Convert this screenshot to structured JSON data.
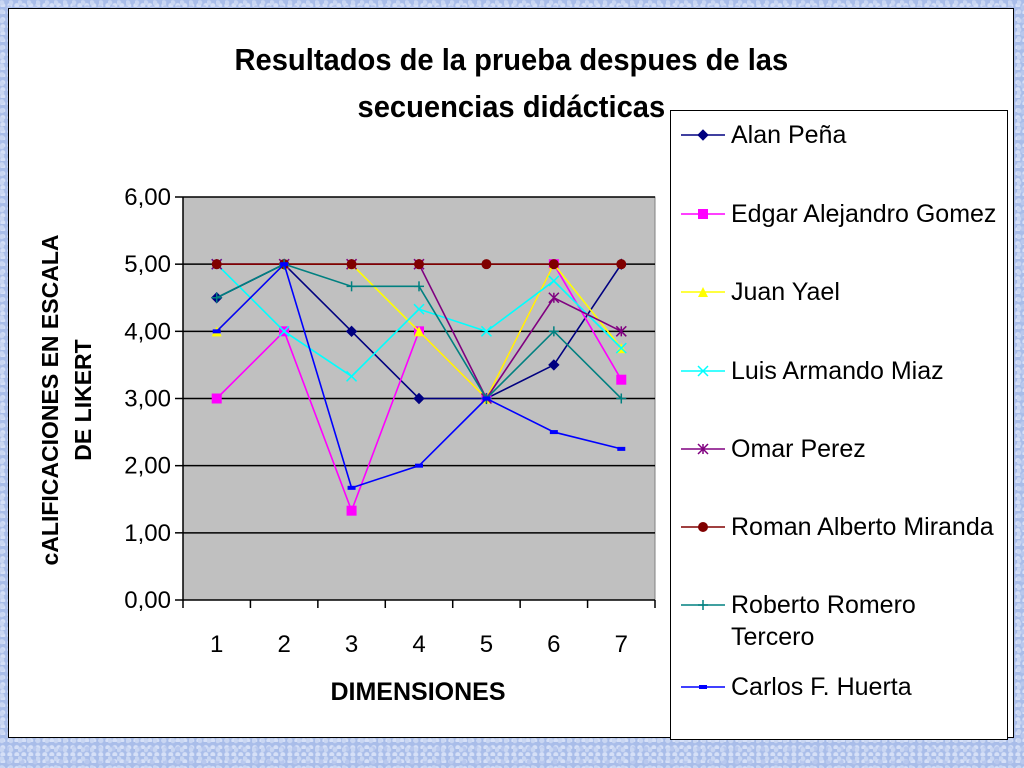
{
  "chart_data": {
    "type": "line",
    "title": "Resultados de la prueba despues de las secuencias didácticas",
    "title_lines": [
      "Resultados de la prueba despues de las",
      "secuencias didácticas"
    ],
    "xlabel": "DIMENSIONES",
    "ylabel_lines": [
      "cALIFICACIONES EN ESCALA",
      "DE LIKERT"
    ],
    "categories": [
      "1",
      "2",
      "3",
      "4",
      "5",
      "6",
      "7"
    ],
    "yticks": [
      "0,00",
      "1,00",
      "2,00",
      "3,00",
      "4,00",
      "5,00",
      "6,00"
    ],
    "ylim": [
      0,
      6
    ],
    "grid": true,
    "plot_background": "#c0c0c0",
    "legend_position": "right",
    "series": [
      {
        "name": "Alan Peña",
        "color": "#000080",
        "marker": "diamond",
        "values": [
          4.5,
          5.0,
          4.0,
          3.0,
          3.0,
          3.5,
          5.0
        ]
      },
      {
        "name": "Edgar Alejandro Gomez",
        "color": "#ff00ff",
        "marker": "square",
        "values": [
          3.0,
          4.0,
          1.33,
          4.0,
          3.0,
          5.0,
          3.28
        ]
      },
      {
        "name": "Juan Yael",
        "color": "#ffff00",
        "marker": "triangle",
        "values": [
          4.0,
          5.0,
          5.0,
          4.0,
          3.0,
          5.0,
          3.75
        ]
      },
      {
        "name": "Luis Armando Miaz",
        "color": "#00ffff",
        "marker": "x",
        "values": [
          5.0,
          4.0,
          3.33,
          4.33,
          4.0,
          4.75,
          3.75
        ]
      },
      {
        "name": "Omar Perez",
        "color": "#800080",
        "marker": "star",
        "values": [
          5.0,
          5.0,
          5.0,
          5.0,
          3.0,
          4.5,
          4.0
        ]
      },
      {
        "name": "Roman Alberto Miranda",
        "color": "#800000",
        "marker": "circle",
        "values": [
          5.0,
          5.0,
          5.0,
          5.0,
          5.0,
          5.0,
          5.0
        ]
      },
      {
        "name": "Roberto Romero Tercero",
        "color": "#008080",
        "marker": "plus",
        "values": [
          4.5,
          5.0,
          4.67,
          4.67,
          3.0,
          4.0,
          3.0
        ]
      },
      {
        "name": "Carlos F. Huerta",
        "color": "#0000ff",
        "marker": "dash",
        "values": [
          4.0,
          5.0,
          1.67,
          2.0,
          3.0,
          2.5,
          2.25
        ]
      }
    ]
  }
}
